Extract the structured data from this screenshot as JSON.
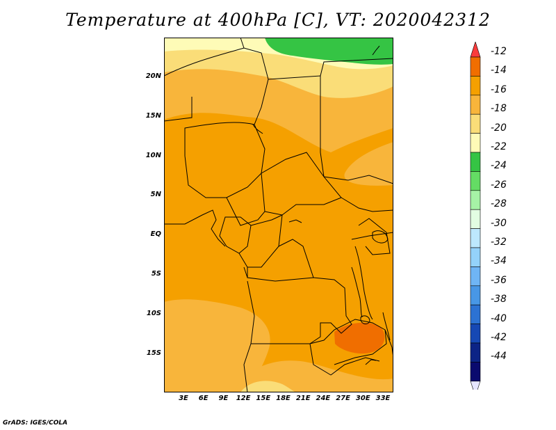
{
  "title": "Temperature at 400hPa [C], VT: 2020042312",
  "credit": "GrADS: IGES/COLA",
  "map": {
    "lat_labels": [
      "20N",
      "15N",
      "10N",
      "5N",
      "EQ",
      "5S",
      "10S",
      "15S"
    ],
    "lon_labels": [
      "3E",
      "6E",
      "9E",
      "12E",
      "15E",
      "18E",
      "21E",
      "24E",
      "27E",
      "30E",
      "33E"
    ]
  },
  "colorbar": {
    "labels": [
      "-12",
      "-14",
      "-16",
      "-18",
      "-20",
      "-22",
      "-24",
      "-26",
      "-28",
      "-30",
      "-32",
      "-34",
      "-36",
      "-38",
      "-40",
      "-42",
      "-44"
    ],
    "colors": [
      "#fa3c3c",
      "#f06e00",
      "#f5a000",
      "#f8b53b",
      "#fadd78",
      "#fefbb7",
      "#35c444",
      "#64dc64",
      "#a6f2a6",
      "#e2fde2",
      "#bde8fd",
      "#94d2fa",
      "#6fb5f5",
      "#4897e6",
      "#2c72d3",
      "#1648b4",
      "#0c2486",
      "#0a0a6e",
      "#e6e6ff"
    ]
  }
}
